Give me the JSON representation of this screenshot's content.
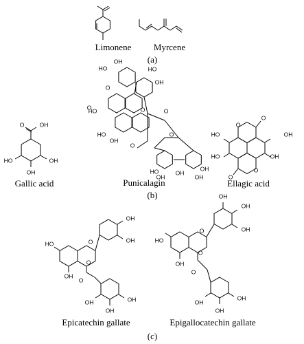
{
  "panel_a": {
    "molecules": [
      {
        "name": "Limonene"
      },
      {
        "name": "Myrcene"
      }
    ],
    "label": "(a)"
  },
  "panel_b": {
    "molecules": [
      {
        "name": "Gallic acid",
        "atoms": [
          "O",
          "OH",
          "HO",
          "OH",
          "OH"
        ]
      },
      {
        "name": "Punicalagin",
        "atoms": [
          "HO",
          "OH",
          "HO",
          "OH",
          "O",
          "O",
          "O",
          "O",
          "HO",
          "HO",
          "OH",
          "O",
          "O",
          "HO",
          "OH",
          "OH",
          "OH",
          "OH"
        ]
      },
      {
        "name": "Ellagic acid",
        "atoms": [
          "O",
          "O",
          "HO",
          "OH",
          "HO",
          "OH",
          "O",
          "O"
        ]
      }
    ],
    "label": "(b)"
  },
  "panel_c": {
    "molecules": [
      {
        "name": "Epicatechin gallate",
        "atoms": [
          "OH",
          "OH",
          "HO",
          "O",
          "OH",
          "O",
          "O",
          "OH",
          "OH",
          "OH"
        ]
      },
      {
        "name": "Epigallocatechin gallate",
        "atoms": [
          "OH",
          "OH",
          "OH",
          "HO",
          "O",
          "OH",
          "O",
          "O",
          "OH",
          "OH",
          "OH"
        ]
      }
    ],
    "label": "(c)"
  }
}
